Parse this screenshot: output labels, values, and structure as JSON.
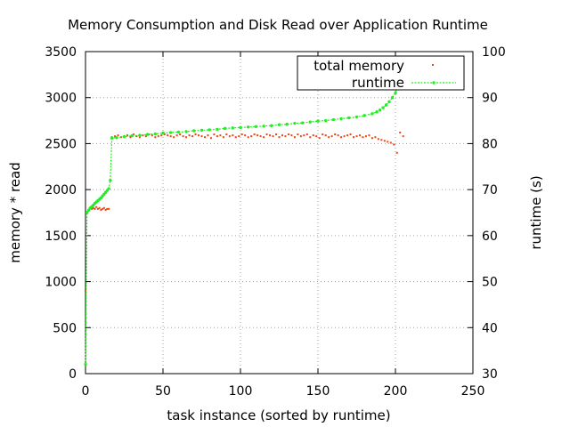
{
  "chart_data": {
    "type": "scatter",
    "title": "Memory Consumption and Disk Read over Application Runtime",
    "xlabel": "task instance (sorted by runtime)",
    "ylabel": "memory * read",
    "y2label": "runtime (s)",
    "xlim": [
      0,
      250
    ],
    "ylim": [
      0,
      3500
    ],
    "y2lim": [
      30,
      100
    ],
    "xticks": [
      0,
      50,
      100,
      150,
      200,
      250
    ],
    "yticks": [
      0,
      500,
      1000,
      1500,
      2000,
      2500,
      3000,
      3500
    ],
    "y2ticks": [
      30,
      40,
      50,
      60,
      70,
      80,
      90,
      100
    ],
    "grid": true,
    "legend_position": "top-right",
    "series": [
      {
        "name": "total memory",
        "axis": "y",
        "style": "points",
        "color": "#ee4411",
        "x": [
          0,
          1,
          2,
          3,
          4,
          5,
          6,
          7,
          8,
          9,
          10,
          11,
          12,
          13,
          14,
          15,
          17,
          19,
          21,
          23,
          25,
          27,
          29,
          31,
          33,
          35,
          37,
          39,
          41,
          43,
          45,
          47,
          49,
          51,
          53,
          55,
          57,
          59,
          61,
          63,
          65,
          67,
          69,
          71,
          73,
          75,
          77,
          79,
          81,
          83,
          85,
          87,
          89,
          91,
          93,
          95,
          97,
          99,
          101,
          103,
          105,
          107,
          109,
          111,
          113,
          115,
          117,
          119,
          121,
          123,
          125,
          127,
          129,
          131,
          133,
          135,
          137,
          139,
          141,
          143,
          145,
          147,
          149,
          151,
          153,
          155,
          157,
          159,
          161,
          163,
          165,
          167,
          169,
          171,
          173,
          175,
          177,
          179,
          181,
          183,
          185,
          187,
          189,
          191,
          193,
          195,
          197,
          199,
          201,
          203,
          205
        ],
        "y": [
          900,
          1750,
          1780,
          1800,
          1790,
          1800,
          1790,
          1810,
          1790,
          1800,
          1780,
          1790,
          1800,
          1780,
          1790,
          1790,
          2570,
          2580,
          2590,
          2570,
          2580,
          2590,
          2570,
          2600,
          2580,
          2570,
          2590,
          2580,
          2600,
          2590,
          2570,
          2580,
          2590,
          2600,
          2590,
          2580,
          2570,
          2590,
          2600,
          2580,
          2570,
          2590,
          2580,
          2600,
          2590,
          2580,
          2570,
          2590,
          2560,
          2600,
          2580,
          2590,
          2570,
          2600,
          2580,
          2590,
          2570,
          2580,
          2600,
          2590,
          2570,
          2580,
          2600,
          2590,
          2580,
          2570,
          2600,
          2590,
          2580,
          2600,
          2570,
          2590,
          2580,
          2600,
          2590,
          2570,
          2600,
          2580,
          2590,
          2600,
          2570,
          2590,
          2580,
          2560,
          2600,
          2590,
          2570,
          2580,
          2600,
          2590,
          2570,
          2580,
          2590,
          2600,
          2570,
          2580,
          2590,
          2570,
          2580,
          2590,
          2560,
          2570,
          2550,
          2540,
          2530,
          2520,
          2510,
          2490,
          2400,
          2620,
          2580
        ]
      },
      {
        "name": "runtime",
        "axis": "y2",
        "style": "linespoints",
        "color": "#22ee22",
        "x": [
          0,
          1,
          2,
          3,
          4,
          5,
          6,
          7,
          8,
          9,
          10,
          11,
          12,
          13,
          14,
          15,
          16,
          17,
          20,
          25,
          30,
          35,
          40,
          45,
          50,
          55,
          60,
          65,
          70,
          75,
          80,
          85,
          90,
          95,
          100,
          105,
          110,
          115,
          120,
          125,
          130,
          135,
          140,
          145,
          150,
          155,
          160,
          165,
          170,
          175,
          180,
          185,
          188,
          190,
          192,
          194,
          196,
          198,
          200,
          201,
          202,
          203,
          204
        ],
        "y": [
          32,
          65,
          65.5,
          66,
          66.3,
          66.6,
          67,
          67.3,
          67.6,
          67.9,
          68.2,
          68.6,
          69,
          69.4,
          69.8,
          70.2,
          72,
          81.2,
          81.3,
          81.5,
          81.7,
          81.8,
          82,
          82.1,
          82.3,
          82.4,
          82.5,
          82.6,
          82.8,
          82.9,
          83,
          83.1,
          83.3,
          83.4,
          83.5,
          83.6,
          83.7,
          83.8,
          83.9,
          84.1,
          84.2,
          84.4,
          84.5,
          84.7,
          84.9,
          85,
          85.2,
          85.4,
          85.6,
          85.8,
          86.1,
          86.5,
          86.9,
          87.3,
          87.8,
          88.4,
          89.1,
          90,
          91,
          92,
          93.2,
          94.5,
          95
        ]
      }
    ]
  }
}
